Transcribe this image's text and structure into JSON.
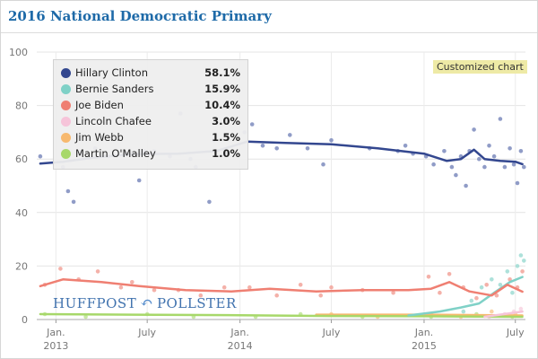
{
  "page": {
    "title": "2016 National Democratic Primary",
    "badge": "Customized chart",
    "logo": {
      "left": "HUFFPOST",
      "right": "POLLSTER"
    }
  },
  "chart_data": {
    "type": "scatter",
    "title": "2016 National Democratic Primary",
    "xlim": [
      "2012-11-24",
      "2015-07-21"
    ],
    "ylim": [
      0,
      100
    ],
    "yticks": [
      0,
      20,
      40,
      60,
      80,
      100
    ],
    "xticks": [
      {
        "date": "2013-01-01",
        "top": "Jan.",
        "bottom": "2013"
      },
      {
        "date": "2013-07-01",
        "top": "July",
        "bottom": ""
      },
      {
        "date": "2014-01-01",
        "top": "Jan.",
        "bottom": "2014"
      },
      {
        "date": "2014-07-01",
        "top": "July",
        "bottom": ""
      },
      {
        "date": "2015-01-01",
        "top": "Jan.",
        "bottom": "2015"
      },
      {
        "date": "2015-07-01",
        "top": "July",
        "bottom": ""
      }
    ],
    "grid": true,
    "legend_position": "top-left",
    "series": [
      {
        "name": "Hillary Clinton",
        "label": "58.1%",
        "color": "#33478f",
        "dot_color": "#7d8bbd",
        "trend": [
          [
            "2012-12-01",
            58.3
          ],
          [
            "2013-01-15",
            59
          ],
          [
            "2013-03-15",
            60.5
          ],
          [
            "2013-06-01",
            61.8
          ],
          [
            "2013-09-01",
            62
          ],
          [
            "2013-11-15",
            63
          ],
          [
            "2014-01-15",
            66.5
          ],
          [
            "2014-04-01",
            66
          ],
          [
            "2014-07-01",
            65.5
          ],
          [
            "2014-10-01",
            64
          ],
          [
            "2015-01-01",
            62
          ],
          [
            "2015-02-15",
            59.3
          ],
          [
            "2015-03-15",
            60
          ],
          [
            "2015-04-10",
            63.5
          ],
          [
            "2015-05-01",
            60
          ],
          [
            "2015-06-01",
            59.3
          ],
          [
            "2015-07-01",
            59
          ],
          [
            "2015-07-15",
            58.1
          ]
        ],
        "points": [
          [
            "2012-12-01",
            61
          ],
          [
            "2013-01-15",
            57
          ],
          [
            "2013-01-25",
            48
          ],
          [
            "2013-02-05",
            44
          ],
          [
            "2013-02-20",
            62
          ],
          [
            "2013-03-20",
            64
          ],
          [
            "2013-04-15",
            61
          ],
          [
            "2013-05-20",
            62
          ],
          [
            "2013-06-15",
            52
          ],
          [
            "2013-06-25",
            63
          ],
          [
            "2013-07-15",
            63
          ],
          [
            "2013-08-15",
            61
          ],
          [
            "2013-09-05",
            77
          ],
          [
            "2013-09-25",
            60
          ],
          [
            "2013-10-05",
            57
          ],
          [
            "2013-11-01",
            44
          ],
          [
            "2013-11-10",
            67
          ],
          [
            "2013-12-01",
            62
          ],
          [
            "2014-01-10",
            70
          ],
          [
            "2014-01-25",
            73
          ],
          [
            "2014-02-15",
            65
          ],
          [
            "2014-03-15",
            64
          ],
          [
            "2014-04-10",
            69
          ],
          [
            "2014-05-15",
            64
          ],
          [
            "2014-06-15",
            58
          ],
          [
            "2014-07-01",
            67
          ],
          [
            "2014-09-15",
            64
          ],
          [
            "2014-11-10",
            63
          ],
          [
            "2014-11-25",
            65
          ],
          [
            "2014-12-10",
            62
          ],
          [
            "2015-01-05",
            61
          ],
          [
            "2015-01-20",
            58
          ],
          [
            "2015-02-10",
            63
          ],
          [
            "2015-02-25",
            57
          ],
          [
            "2015-03-05",
            54
          ],
          [
            "2015-03-15",
            61
          ],
          [
            "2015-03-25",
            50
          ],
          [
            "2015-04-01",
            63
          ],
          [
            "2015-04-10",
            71
          ],
          [
            "2015-04-20",
            60
          ],
          [
            "2015-05-01",
            57
          ],
          [
            "2015-05-10",
            65
          ],
          [
            "2015-05-20",
            61
          ],
          [
            "2015-06-01",
            75
          ],
          [
            "2015-06-10",
            57
          ],
          [
            "2015-06-20",
            64
          ],
          [
            "2015-06-28",
            58
          ],
          [
            "2015-07-05",
            51
          ],
          [
            "2015-07-12",
            63
          ],
          [
            "2015-07-18",
            57
          ]
        ]
      },
      {
        "name": "Bernie Sanders",
        "label": "15.9%",
        "color": "#7fd1c7",
        "dot_color": "#9fdcd4",
        "trend": [
          [
            "2014-12-01",
            1.5
          ],
          [
            "2015-02-01",
            3
          ],
          [
            "2015-03-15",
            4.5
          ],
          [
            "2015-04-20",
            6
          ],
          [
            "2015-05-20",
            10
          ],
          [
            "2015-06-20",
            14
          ],
          [
            "2015-07-15",
            15.9
          ]
        ],
        "points": [
          [
            "2015-03-20",
            3
          ],
          [
            "2015-04-05",
            7
          ],
          [
            "2015-04-25",
            12
          ],
          [
            "2015-05-15",
            15
          ],
          [
            "2015-06-01",
            13
          ],
          [
            "2015-06-15",
            18
          ],
          [
            "2015-06-25",
            10
          ],
          [
            "2015-07-05",
            20
          ],
          [
            "2015-07-12",
            24
          ],
          [
            "2015-07-18",
            22
          ]
        ]
      },
      {
        "name": "Joe Biden",
        "label": "10.4%",
        "color": "#ef7f72",
        "dot_color": "#f2a39a",
        "trend": [
          [
            "2012-12-01",
            12.5
          ],
          [
            "2013-01-15",
            15
          ],
          [
            "2013-04-01",
            14
          ],
          [
            "2013-06-15",
            12.5
          ],
          [
            "2013-09-15",
            11
          ],
          [
            "2013-12-15",
            10.5
          ],
          [
            "2014-03-01",
            11.5
          ],
          [
            "2014-06-01",
            10.5
          ],
          [
            "2014-09-01",
            11
          ],
          [
            "2014-12-01",
            11
          ],
          [
            "2015-01-15",
            11.5
          ],
          [
            "2015-02-20",
            14
          ],
          [
            "2015-04-01",
            10.5
          ],
          [
            "2015-05-15",
            9
          ],
          [
            "2015-06-15",
            13
          ],
          [
            "2015-07-15",
            10.4
          ]
        ],
        "points": [
          [
            "2012-12-10",
            13
          ],
          [
            "2013-01-10",
            19
          ],
          [
            "2013-02-15",
            15
          ],
          [
            "2013-03-25",
            18
          ],
          [
            "2013-05-10",
            12
          ],
          [
            "2013-06-01",
            14
          ],
          [
            "2013-07-15",
            11
          ],
          [
            "2013-09-01",
            11
          ],
          [
            "2013-10-15",
            9
          ],
          [
            "2013-12-01",
            12
          ],
          [
            "2014-01-20",
            12
          ],
          [
            "2014-03-15",
            9
          ],
          [
            "2014-05-01",
            13
          ],
          [
            "2014-06-10",
            9
          ],
          [
            "2014-07-01",
            12
          ],
          [
            "2014-09-01",
            11
          ],
          [
            "2014-11-01",
            10
          ],
          [
            "2015-01-10",
            16
          ],
          [
            "2015-02-01",
            10
          ],
          [
            "2015-02-20",
            17
          ],
          [
            "2015-03-20",
            12
          ],
          [
            "2015-04-15",
            8
          ],
          [
            "2015-05-05",
            13
          ],
          [
            "2015-05-25",
            9
          ],
          [
            "2015-06-20",
            15
          ],
          [
            "2015-07-05",
            12
          ],
          [
            "2015-07-15",
            18
          ]
        ]
      },
      {
        "name": "Lincoln Chafee",
        "label": "3.0%",
        "color": "#f6c4d9",
        "dot_color": "#f8d3e2",
        "trend": [
          [
            "2015-05-01",
            1
          ],
          [
            "2015-07-15",
            3
          ]
        ],
        "points": [
          [
            "2015-05-10",
            1
          ],
          [
            "2015-06-10",
            2
          ],
          [
            "2015-06-28",
            3
          ],
          [
            "2015-07-12",
            4
          ]
        ]
      },
      {
        "name": "Jim Webb",
        "label": "1.5%",
        "color": "#f7b96f",
        "dot_color": "#f8cc94",
        "trend": [
          [
            "2014-06-01",
            1.8
          ],
          [
            "2015-01-01",
            1.8
          ],
          [
            "2015-07-15",
            1.5
          ]
        ],
        "points": [
          [
            "2014-07-01",
            2
          ],
          [
            "2014-10-01",
            1
          ],
          [
            "2015-01-15",
            2
          ],
          [
            "2015-03-15",
            1
          ],
          [
            "2015-05-15",
            3
          ],
          [
            "2015-07-01",
            2
          ]
        ]
      },
      {
        "name": "Martin O'Malley",
        "label": "1.0%",
        "color": "#a7d86a",
        "dot_color": "#bfe496",
        "trend": [
          [
            "2012-12-01",
            2
          ],
          [
            "2013-06-01",
            1.8
          ],
          [
            "2014-01-01",
            1.6
          ],
          [
            "2014-07-01",
            1.3
          ],
          [
            "2015-01-01",
            1.2
          ],
          [
            "2015-07-15",
            1
          ]
        ],
        "points": [
          [
            "2012-12-10",
            2
          ],
          [
            "2013-03-01",
            1
          ],
          [
            "2013-07-01",
            2
          ],
          [
            "2013-10-01",
            1
          ],
          [
            "2014-02-01",
            1
          ],
          [
            "2014-05-01",
            2
          ],
          [
            "2014-09-01",
            1
          ],
          [
            "2015-01-15",
            1
          ],
          [
            "2015-04-15",
            2
          ],
          [
            "2015-06-25",
            1
          ]
        ]
      }
    ]
  }
}
